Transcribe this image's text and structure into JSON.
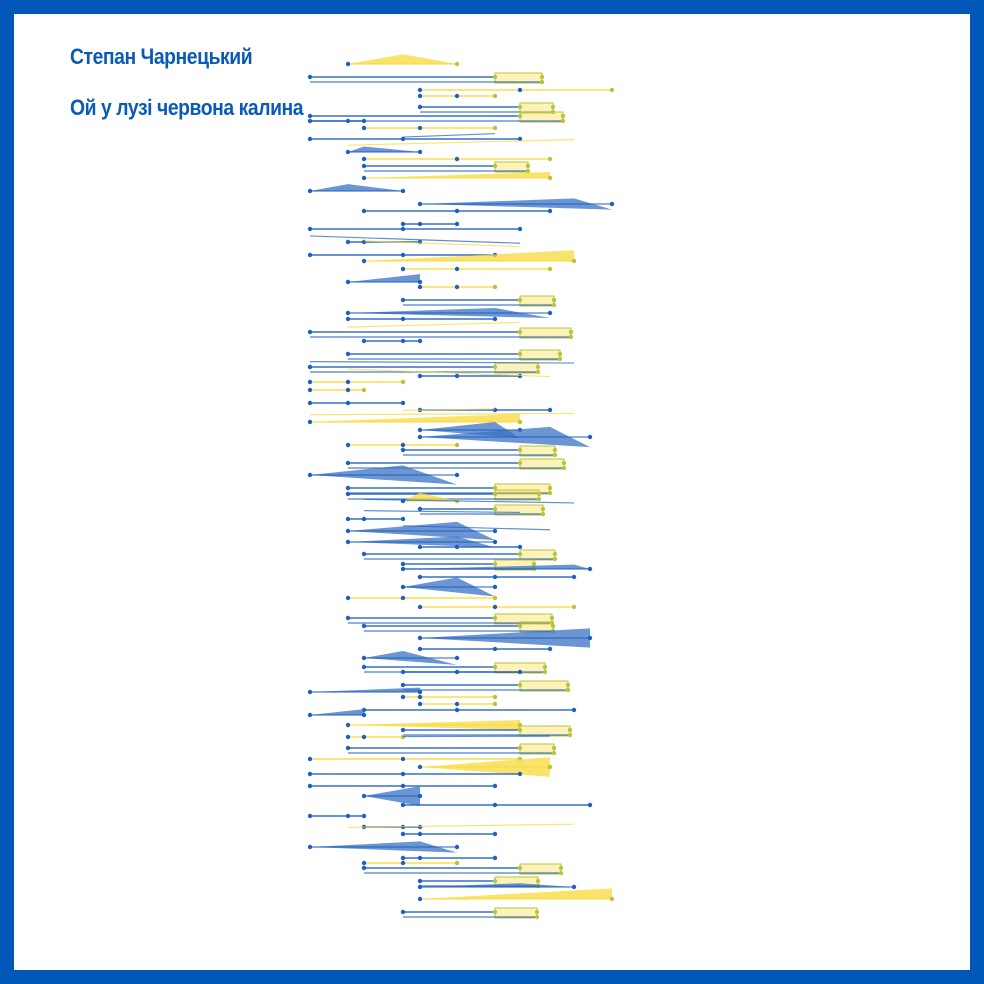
{
  "poster": {
    "composer": "Степан Чарнецький",
    "title": "Ой у лузі червона калина"
  },
  "colors": {
    "blue": "#1f5fbf",
    "blue_fill": "#3a72c4",
    "yellow": "#f7d93a",
    "yellow_dot": "#b9c43a",
    "frame": "#0057b7",
    "text": "#0a5bb7"
  },
  "artwork": {
    "description_name": "melody-visualization",
    "note_levels": [
      0,
      1,
      2,
      3,
      4,
      5,
      6,
      7,
      8
    ],
    "phrase_count": 72
  }
}
